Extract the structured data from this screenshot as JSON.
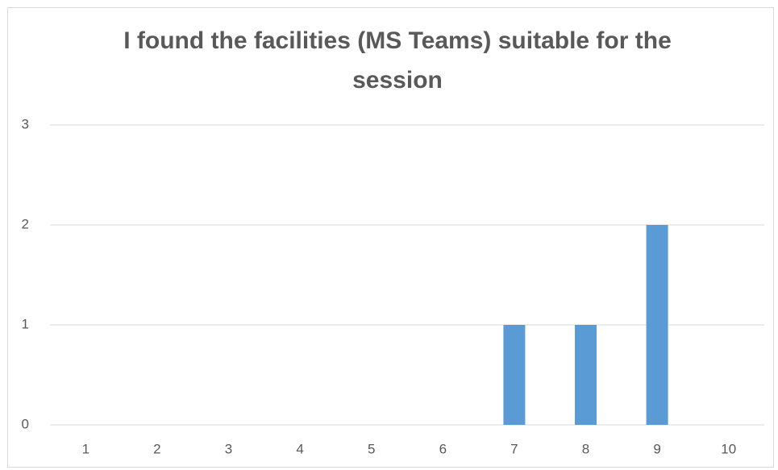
{
  "chart_data": {
    "type": "bar",
    "title": "I found the facilities (MS Teams) suitable for the session",
    "categories": [
      "1",
      "2",
      "3",
      "4",
      "5",
      "6",
      "7",
      "8",
      "9",
      "10"
    ],
    "values": [
      0,
      0,
      0,
      0,
      0,
      0,
      1,
      1,
      2,
      0
    ],
    "color": "#5b9bd5",
    "ylim": [
      0,
      3
    ],
    "yticks": [
      0,
      1,
      2,
      3
    ],
    "grid": true
  }
}
